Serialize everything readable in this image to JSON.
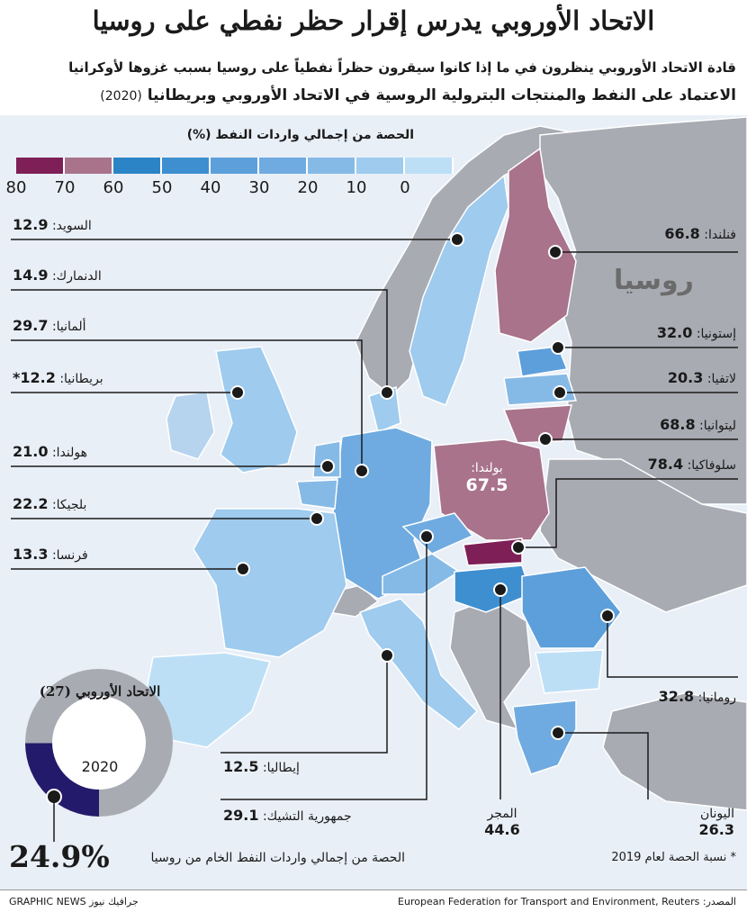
{
  "title": "الاتحاد الأوروبي يدرس إقرار حظر نفطي على روسيا",
  "subtitle": "قادة الاتحاد الأوروبي ينظرون في ما إذا كانوا سيقرون حظراً نفطياً على روسيا بسبب غزوها لأوكرانيا",
  "heading": "الاعتماد على النفط والمنتجات البترولية الروسية في الاتحاد الأوروبي وبريطانيا",
  "heading_year": "(2020)",
  "legend": {
    "title": "الحصة من إجمالي واردات النفط (%)",
    "ticks": [
      "80",
      "70",
      "60",
      "50",
      "40",
      "30",
      "20",
      "10",
      "0"
    ],
    "colors": [
      "#7e1f57",
      "#a8738b",
      "#2b84c6",
      "#3e8fd0",
      "#5d9fdb",
      "#6fabe0",
      "#86bae6",
      "#9ecbee",
      "#bcdff6"
    ]
  },
  "russia_label": "روسيا",
  "countries": {
    "sweden": {
      "name": "السويد:",
      "value": "12.9"
    },
    "denmark": {
      "name": "الدنمارك:",
      "value": "14.9"
    },
    "germany": {
      "name": "ألمانيا:",
      "value": "29.7"
    },
    "britain": {
      "name": "بريطانيا:",
      "value": "12.2*"
    },
    "netherlands": {
      "name": "هولندا:",
      "value": "21.0"
    },
    "belgium": {
      "name": "بلجيكا:",
      "value": "22.2"
    },
    "france": {
      "name": "فرنسا:",
      "value": "13.3"
    },
    "italy": {
      "name": "إيطاليا:",
      "value": "12.5"
    },
    "czech": {
      "name": "جمهورية التشيك:",
      "value": "29.1"
    },
    "hungary": {
      "name": "المجر",
      "value": "44.6"
    },
    "greece": {
      "name": "اليونان",
      "value": "26.3"
    },
    "finland": {
      "name": "فنلندا:",
      "value": "66.8"
    },
    "estonia": {
      "name": "إستونيا:",
      "value": "32.0"
    },
    "latvia": {
      "name": "لاتفيا:",
      "value": "20.3"
    },
    "lithuania": {
      "name": "ليتوانيا:",
      "value": "68.8"
    },
    "slovakia": {
      "name": "سلوفاكيا:",
      "value": "78.4"
    },
    "romania": {
      "name": "رومانيا:",
      "value": "32.8"
    },
    "poland": {
      "name": "بولندا:",
      "value": "67.5"
    }
  },
  "eu_donut": {
    "label": "الاتحاد الأوروبي (27)",
    "year": "2020",
    "share_percent": 24.9,
    "share_text": "24.9%",
    "share_description": "الحصة من إجمالي واردات النفط الخام من روسيا",
    "colors": {
      "share": "#241a6b",
      "rest": "#a9abb3"
    }
  },
  "note": "* نسبة الحصة لعام 2019",
  "credit": "GRAPHIC NEWS جرافيك نيوز",
  "source": "المصدر: European Federation for Transport and Environment, Reuters"
}
